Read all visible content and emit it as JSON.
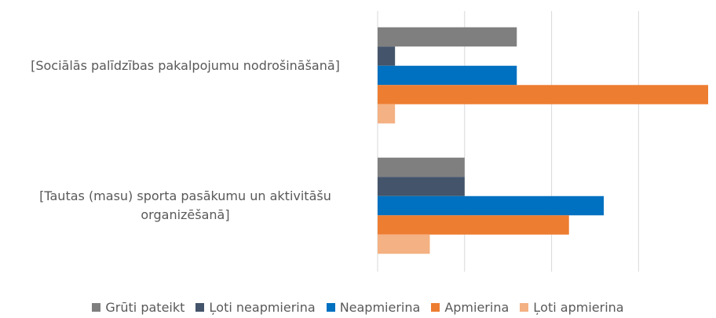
{
  "chart_data": {
    "type": "hbar",
    "categories": [
      "[Sociālās palīdzības pakalpojumu nodrošināšanā]",
      "[Tautas (masu) sporta pasākumu un aktivitāšu organizēšanā]"
    ],
    "series": [
      {
        "name": "Grūti pateikt",
        "color": "#7f7f7f",
        "values": [
          8,
          5
        ]
      },
      {
        "name": "Ļoti neapmierina",
        "color": "#44546a",
        "values": [
          1,
          5
        ]
      },
      {
        "name": "Neapmierina",
        "color": "#0070c0",
        "values": [
          8,
          13
        ]
      },
      {
        "name": "Apmierina",
        "color": "#ed7d31",
        "values": [
          19,
          11
        ]
      },
      {
        "name": "Ļoti apmierina",
        "color": "#f4b183",
        "values": [
          1,
          3
        ]
      }
    ],
    "xlim": [
      0,
      19
    ],
    "xticks": [
      0,
      5,
      10,
      15
    ],
    "grid": true,
    "legend": "bottom"
  }
}
